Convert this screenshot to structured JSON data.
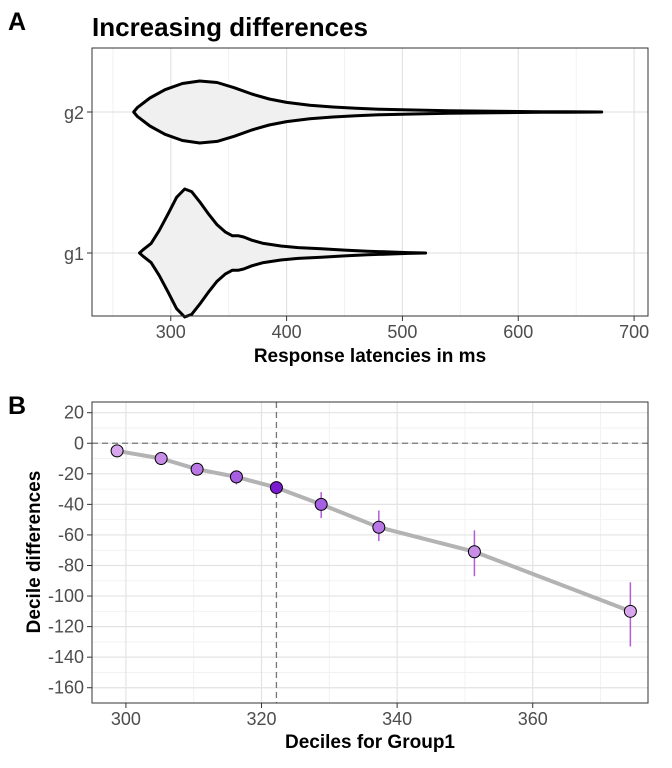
{
  "panels": {
    "a_tag": "A",
    "b_tag": "B"
  },
  "chart_data": [
    {
      "type": "violin",
      "title": "Increasing differences",
      "xlabel": "Response latencies in ms",
      "ylabel": "",
      "xlim": [
        232,
        712
      ],
      "xticks": [
        300,
        400,
        500,
        600,
        700
      ],
      "grid": true,
      "fill_color": "#f0f0f0",
      "outline_color": "#000000",
      "categories": [
        "g2",
        "g1"
      ],
      "distributions": [
        {
          "category": "g2",
          "profile": [
            [
              268,
              0.0
            ],
            [
              271,
              0.14
            ],
            [
              282,
              0.45
            ],
            [
              295,
              0.72
            ],
            [
              310,
              0.92
            ],
            [
              325,
              1.0
            ],
            [
              340,
              0.95
            ],
            [
              355,
              0.78
            ],
            [
              370,
              0.58
            ],
            [
              385,
              0.42
            ],
            [
              400,
              0.31
            ],
            [
              420,
              0.22
            ],
            [
              440,
              0.16
            ],
            [
              460,
              0.12
            ],
            [
              480,
              0.09
            ],
            [
              500,
              0.07
            ],
            [
              520,
              0.055
            ],
            [
              540,
              0.042
            ],
            [
              560,
              0.032
            ],
            [
              580,
              0.024
            ],
            [
              600,
              0.017
            ],
            [
              620,
              0.011
            ],
            [
              640,
              0.006
            ],
            [
              660,
              0.0025
            ],
            [
              672,
              0.0
            ]
          ]
        },
        {
          "category": "g1",
          "profile": [
            [
              273,
              0.0
            ],
            [
              276,
              0.05
            ],
            [
              283,
              0.15
            ],
            [
              290,
              0.35
            ],
            [
              298,
              0.62
            ],
            [
              305,
              0.87
            ],
            [
              312,
              1.0
            ],
            [
              318,
              0.96
            ],
            [
              325,
              0.8
            ],
            [
              333,
              0.6
            ],
            [
              340,
              0.44
            ],
            [
              347,
              0.33
            ],
            [
              353,
              0.27
            ],
            [
              358,
              0.27
            ],
            [
              363,
              0.25
            ],
            [
              370,
              0.2
            ],
            [
              380,
              0.15
            ],
            [
              395,
              0.11
            ],
            [
              410,
              0.085
            ],
            [
              430,
              0.065
            ],
            [
              450,
              0.045
            ],
            [
              470,
              0.028
            ],
            [
              490,
              0.015
            ],
            [
              505,
              0.007
            ],
            [
              520,
              0.0
            ]
          ]
        }
      ]
    },
    {
      "type": "line",
      "xlabel": "Deciles for Group1",
      "ylabel": "Decile differences",
      "xlim": [
        295,
        377
      ],
      "ylim": [
        -170,
        27
      ],
      "xticks": [
        300,
        320,
        340,
        360
      ],
      "yticks": [
        20,
        0,
        -20,
        -40,
        -60,
        -80,
        -100,
        -120,
        -140,
        -160
      ],
      "grid": true,
      "hline": 0,
      "vline": 322.2,
      "line_color": "#b3b3b3",
      "errorbar_color": "#b45bd9",
      "x": [
        298.7,
        305.2,
        310.5,
        316.3,
        322.2,
        328.8,
        337.3,
        351.4,
        374.4
      ],
      "y": [
        -5,
        -10,
        -17,
        -22,
        -29,
        -40,
        -55,
        -71,
        -110
      ],
      "err_low": [
        -5,
        -12,
        -20,
        -27,
        -34,
        -49,
        -64,
        -87,
        -133
      ],
      "err_high": [
        -5,
        -8,
        -14,
        -19,
        -25,
        -32,
        -44,
        -57,
        -91
      ],
      "point_colors": [
        "#d8a6ec",
        "#c88de7",
        "#b977e5",
        "#a65fe2",
        "#7a1bd0",
        "#a65fe2",
        "#b977e5",
        "#c88de7",
        "#d8a6ec"
      ]
    }
  ]
}
